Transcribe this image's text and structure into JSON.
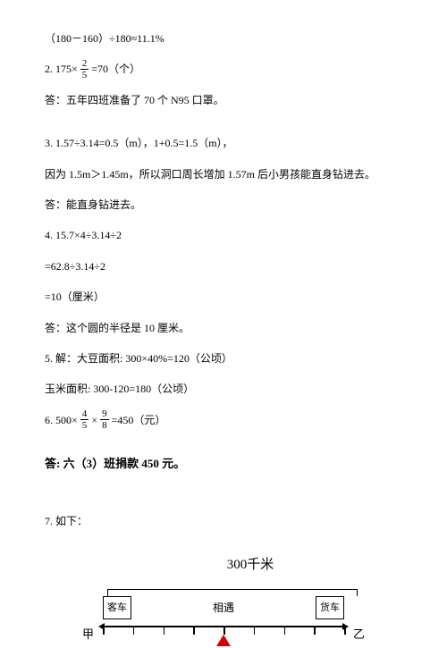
{
  "l1": "（180－160）÷180≈11.1%",
  "l2_prefix": "2. 175×",
  "l2_frac_n": "2",
  "l2_frac_d": "5",
  "l2_suffix": "  =70（个）",
  "l3": "答：五年四班准备了 70 个 N95 口罩。",
  "l4": "3. 1.57÷3.14=0.5（m），1+0.5=1.5（m），",
  "l5": "因为 1.5m＞1.45m，所以洞口周长增加 1.57m 后小男孩能直身钻进去。",
  "l6": "答：能直身钻进去。",
  "l7": "4. 15.7×4÷3.14÷2",
  "l8": "=62.8÷3.14÷2",
  "l9": "=10（厘米）",
  "l10": "答：这个圆的半径是 10 厘米。",
  "l11": "5. 解：大豆面积: 300×40%=120（公顷）",
  "l12": "玉米面积: 300-120=180（公顷）",
  "l13_prefix": "6.  500×",
  "l13_f1n": "4",
  "l13_f1d": "5",
  "l13_mid": "×",
  "l13_f2n": "9",
  "l13_f2d": "8",
  "l13_suffix": "=450（元）",
  "l14": "答: 六（3）班捐款 450 元。",
  "l15": "7. 如下：",
  "diagram": {
    "distance": "300千米",
    "bus": "客车",
    "truck": "货车",
    "meet": "相遇",
    "left_end": "甲",
    "right_end": "乙",
    "tick_count": 9,
    "triangle_pos_pct": 50
  }
}
